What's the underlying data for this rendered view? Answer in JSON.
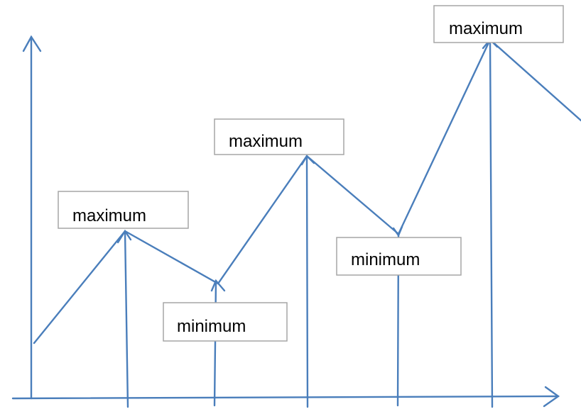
{
  "labels": {
    "max_1": "maximum",
    "min_1": "minimum",
    "max_2": "maximum",
    "min_2": "minimum",
    "max_3": "maximum"
  },
  "colors": {
    "line": "#4a7ebb",
    "box_border": "#a6a6a6",
    "text": "#000000",
    "background": "#ffffff"
  }
}
